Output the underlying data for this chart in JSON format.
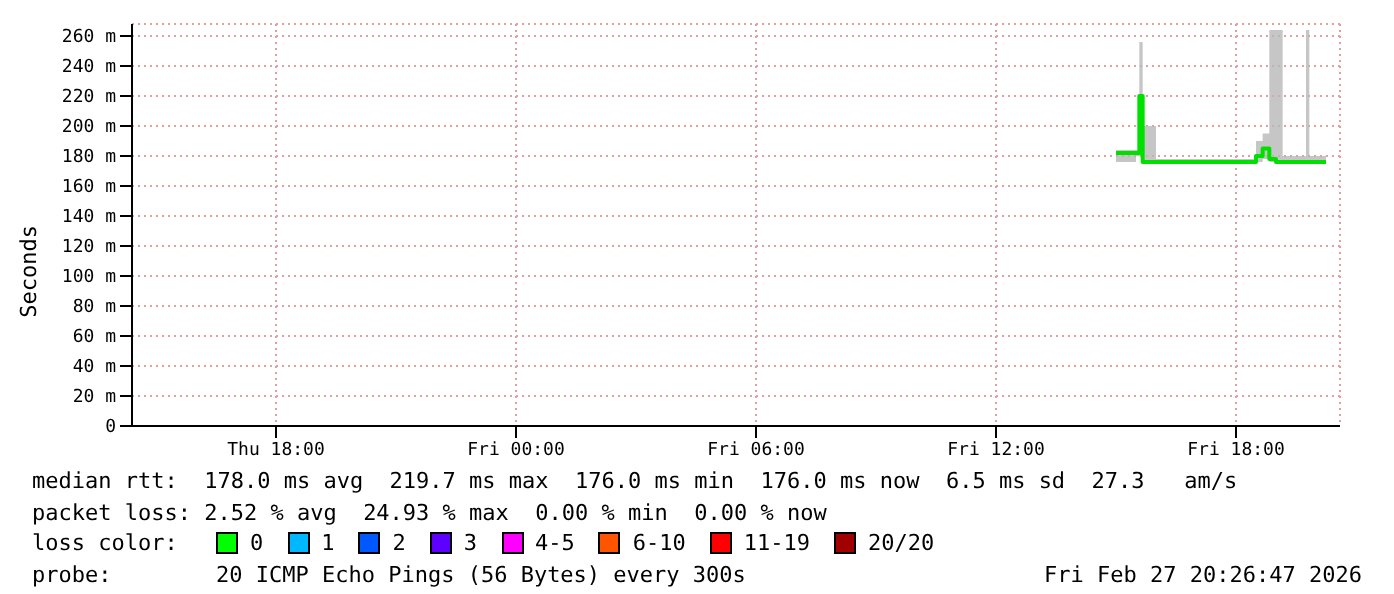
{
  "chart_data": {
    "type": "line",
    "ylabel": "Seconds",
    "x": [
      "2026-02-27T15:00",
      "2026-02-27T15:30",
      "2026-02-27T15:35",
      "2026-02-27T15:40",
      "2026-02-27T16:00",
      "2026-02-27T18:20",
      "2026-02-27T18:30",
      "2026-02-27T18:40",
      "2026-02-27T18:50",
      "2026-02-27T19:00",
      "2026-02-27T19:10",
      "2026-02-27T19:40",
      "2026-02-27T19:45",
      "2026-02-27T19:50",
      "2026-02-27T20:15"
    ],
    "series": [
      {
        "color": "#00e000",
        "values": [
          182,
          182,
          220,
          176,
          176,
          176,
          180,
          185,
          178,
          176,
          176,
          176,
          176,
          176,
          176
        ],
        "lower": [
          176,
          180,
          180,
          176,
          176,
          176,
          176,
          178,
          176,
          176,
          176,
          176,
          176,
          176,
          176
        ],
        "upper": [
          184,
          184,
          256,
          200,
          178,
          178,
          190,
          195,
          264,
          264,
          180,
          180,
          264,
          180,
          178
        ]
      }
    ],
    "xlim": [
      "2026-02-26T14:24",
      "2026-02-27T20:36"
    ],
    "xticks": [
      {
        "value": "2026-02-26T18:00",
        "label": "Thu 18:00"
      },
      {
        "value": "2026-02-27T00:00",
        "label": "Fri 00:00"
      },
      {
        "value": "2026-02-27T06:00",
        "label": "Fri 06:00"
      },
      {
        "value": "2026-02-27T12:00",
        "label": "Fri 12:00"
      },
      {
        "value": "2026-02-27T18:00",
        "label": "Fri 18:00"
      }
    ],
    "ylim": [
      0,
      268
    ],
    "yticks": [
      {
        "value": 0,
        "label": "0"
      },
      {
        "value": 20,
        "label": "20 m"
      },
      {
        "value": 40,
        "label": "40 m"
      },
      {
        "value": 60,
        "label": "60 m"
      },
      {
        "value": 80,
        "label": "80 m"
      },
      {
        "value": 100,
        "label": "100 m"
      },
      {
        "value": 120,
        "label": "120 m"
      },
      {
        "value": 140,
        "label": "140 m"
      },
      {
        "value": 160,
        "label": "160 m"
      },
      {
        "value": 180,
        "label": "180 m"
      },
      {
        "value": 200,
        "label": "200 m"
      },
      {
        "value": 220,
        "label": "220 m"
      },
      {
        "value": 240,
        "label": "240 m"
      },
      {
        "value": 260,
        "label": "260 m"
      }
    ],
    "grid": true,
    "line_style": "solid",
    "marker": "none",
    "annotations": [
      "median rtt:  178.0 ms avg  219.7 ms max  176.0 ms min  176.0 ms now  6.5 ms sd  27.3   am/s",
      "packet loss: 2.52 % avg  24.93 % max  0.00 % min  0.00 % now",
      "loss color:",
      "0",
      "1",
      "2",
      "3",
      "4-5",
      "6-10",
      "11-19",
      "20/20",
      "probe:",
      "20 ICMP Echo Pings (56 Bytes) every 300s",
      "Fri Feb 27 20:26:47 2026"
    ]
  }
}
